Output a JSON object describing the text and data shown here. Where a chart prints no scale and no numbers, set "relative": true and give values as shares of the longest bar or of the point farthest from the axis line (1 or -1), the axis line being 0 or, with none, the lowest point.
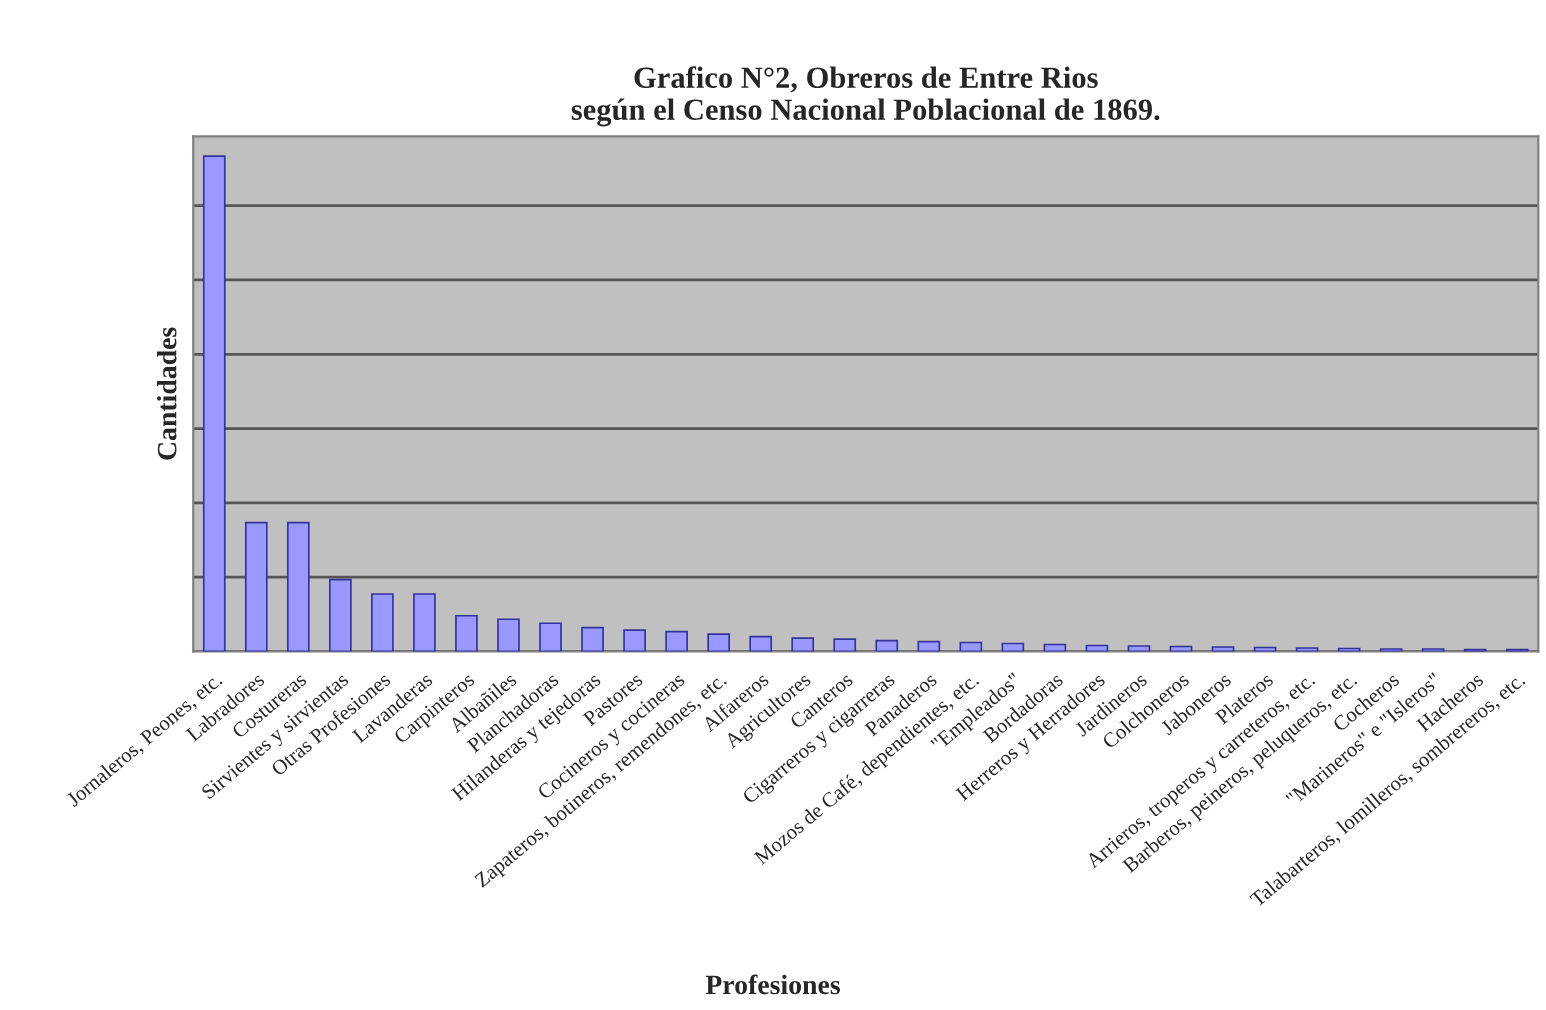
{
  "chart_data": {
    "type": "bar",
    "title": "Grafico N°2, Obreros de Entre Rios\nsegún el Censo Nacional Poblacional de 1869.",
    "xlabel": "Profesiones",
    "ylabel": "Cantidades",
    "relative": true,
    "grid": "y",
    "legend": false,
    "categories": [
      "Jornaleros, Peones, etc.",
      "Labradores",
      "Costureras",
      "Sirvientes y sirvientas",
      "Otras Profesiones",
      "Lavanderas",
      "Carpinteros",
      "Albañiles",
      "Planchadoras",
      "Hilanderas y tejedoras",
      "Pastores",
      "Cocineros y cocineras",
      "Zapateros, botineros, remendones, etc.",
      "Alfareros",
      "Agricultores",
      "Canteros",
      "Cigarreros y cigarreras",
      "Panaderos",
      "Mozos de Café, dependientes, etc.",
      "\"Empleados\"",
      "Bordadoras",
      "Herreros y Herradores",
      "Jardineros",
      "Colchoneros",
      "Jaboneros",
      "Plateros",
      "Arrieros, troperos y carreteros, etc.",
      "Barberos, peineros, peluqueros, etc.",
      "Cocheros",
      "\"Marineros\" e \"Isleros\"",
      "Hacheros",
      "Talabarteros, lomilleros, sombrereros, etc."
    ],
    "values": [
      1,
      0.26,
      0.26,
      0.145,
      0.116,
      0.116,
      0.072,
      0.065,
      0.057,
      0.048,
      0.043,
      0.04,
      0.035,
      0.03,
      0.027,
      0.025,
      0.022,
      0.02,
      0.018,
      0.016,
      0.014,
      0.012,
      0.011,
      0.01,
      0.009,
      0.008,
      0.007,
      0.006,
      0.005,
      0.005,
      0.004,
      0.004
    ],
    "color": "#9999ff"
  }
}
